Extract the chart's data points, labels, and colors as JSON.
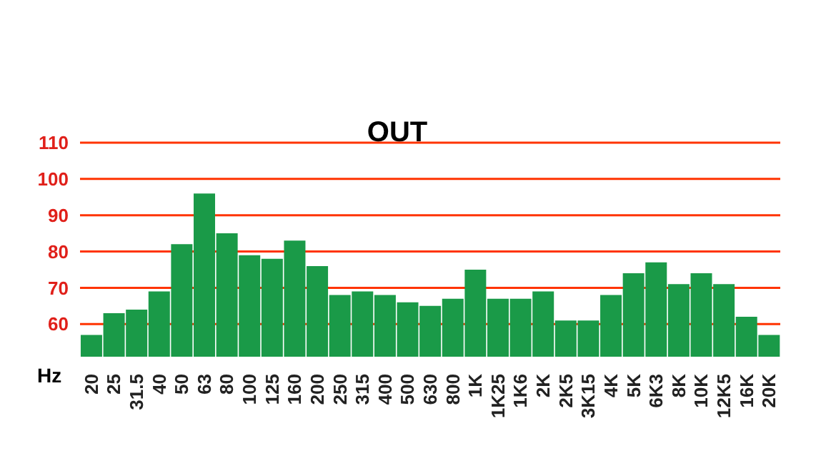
{
  "chart_data": {
    "type": "bar",
    "title": "OUT",
    "xlabel": "Hz",
    "categories": [
      "20",
      "25",
      "31.5",
      "40",
      "50",
      "63",
      "80",
      "100",
      "125",
      "160",
      "200",
      "250",
      "315",
      "400",
      "500",
      "630",
      "800",
      "1K",
      "1K25",
      "1K6",
      "2K",
      "2K5",
      "3K15",
      "4K",
      "5K",
      "6K3",
      "8K",
      "10K",
      "12K5",
      "16K",
      "20K"
    ],
    "series": [
      {
        "color": "#1a9a48",
        "values": [
          57,
          63,
          64,
          69,
          82,
          96,
          85,
          79,
          78,
          83,
          76,
          68,
          69,
          68,
          66,
          65,
          67,
          75,
          67,
          67,
          69,
          61,
          61,
          68,
          74,
          77,
          71,
          74,
          71,
          62,
          57
        ]
      }
    ],
    "ylim": [
      51,
      110
    ],
    "yticks": [
      60,
      70,
      80,
      90,
      100,
      110
    ],
    "grid": "y"
  }
}
